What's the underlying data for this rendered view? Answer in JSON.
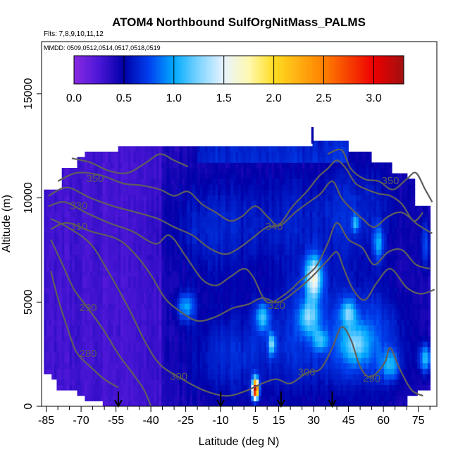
{
  "chart_data": {
    "type": "heatmap",
    "title": "ATOM4 Northbound SulfOrgNitMass_PALMS",
    "flights_label": "Flts: 7,8,9,10,11,12",
    "dates_label": "MMDD: 0509,0512,0514,0517,0518,0519",
    "xlabel": "Latitude (deg N)",
    "ylabel": "Altitude (m)",
    "xlim": [
      -87,
      83
    ],
    "ylim": [
      0,
      17500
    ],
    "x_ticks": [
      -85,
      -70,
      -55,
      -40,
      -25,
      -10,
      5,
      15,
      30,
      45,
      60,
      75
    ],
    "x_minor_ticks": [
      -80,
      -75,
      -65,
      -60,
      -50,
      -45,
      -35,
      -30,
      -20,
      -15,
      -5,
      0,
      10,
      20,
      25,
      35,
      40,
      50,
      55,
      65,
      70,
      80
    ],
    "y_ticks": [
      0,
      5000,
      10000,
      15000
    ],
    "colorbar": {
      "range": [
        0,
        3.3
      ],
      "ticks": [
        0.0,
        0.5,
        1.0,
        1.5,
        2.0,
        2.5,
        3.0
      ],
      "tick_labels": [
        "0.0",
        "0.5",
        "1.0",
        "1.5",
        "2.0",
        "2.5",
        "3.0"
      ],
      "stops": [
        {
          "v": 0.0,
          "color": "#8a2be2"
        },
        {
          "v": 0.25,
          "color": "#4b16d6"
        },
        {
          "v": 0.5,
          "color": "#0000a8"
        },
        {
          "v": 0.75,
          "color": "#0040ee"
        },
        {
          "v": 1.0,
          "color": "#00aaff"
        },
        {
          "v": 1.25,
          "color": "#7fd4ff"
        },
        {
          "v": 1.5,
          "color": "#e8f4ff"
        },
        {
          "v": 1.75,
          "color": "#fff8b0"
        },
        {
          "v": 2.0,
          "color": "#ffdd22"
        },
        {
          "v": 2.5,
          "color": "#ff8000"
        },
        {
          "v": 3.0,
          "color": "#ee0000"
        },
        {
          "v": 3.3,
          "color": "#a01010"
        }
      ]
    },
    "arrows_latitude": [
      -54,
      -10,
      16,
      38
    ],
    "contour_labels": [
      {
        "text": "350",
        "x": -64,
        "y": 10900
      },
      {
        "text": "330",
        "x": -71,
        "y": 9600
      },
      {
        "text": "310",
        "x": -71,
        "y": 8600
      },
      {
        "text": "340",
        "x": 13,
        "y": 8600
      },
      {
        "text": "350",
        "x": 63,
        "y": 10800
      },
      {
        "text": "320",
        "x": 14,
        "y": 4800
      },
      {
        "text": "290",
        "x": -67,
        "y": 4700
      },
      {
        "text": "280",
        "x": -67,
        "y": 2500
      },
      {
        "text": "300",
        "x": -28,
        "y": 1400
      },
      {
        "text": "300",
        "x": 27,
        "y": 1600
      },
      {
        "text": "290",
        "x": 55,
        "y": 1300
      }
    ],
    "contours": [
      {
        "level": 280,
        "points": [
          [
            -83,
            6500
          ],
          [
            -80,
            5200
          ],
          [
            -76,
            3800
          ],
          [
            -72,
            2600
          ],
          [
            -66,
            1900
          ],
          [
            -60,
            1300
          ],
          [
            -54,
            900
          ]
        ]
      },
      {
        "level": 290,
        "points": [
          [
            -83,
            8000
          ],
          [
            -78,
            6800
          ],
          [
            -73,
            5600
          ],
          [
            -67,
            4700
          ],
          [
            -60,
            3600
          ],
          [
            -54,
            2500
          ],
          [
            -48,
            1600
          ],
          [
            -43,
            800
          ],
          [
            -40,
            0
          ]
        ]
      },
      {
        "level": 300,
        "points": [
          [
            -83,
            9000
          ],
          [
            -76,
            8600
          ],
          [
            -66,
            7800
          ],
          [
            -58,
            6400
          ],
          [
            -50,
            4800
          ],
          [
            -42,
            3000
          ],
          [
            -36,
            2000
          ],
          [
            -28,
            1400
          ],
          [
            -18,
            800
          ],
          [
            -8,
            500
          ],
          [
            0,
            700
          ],
          [
            8,
            1100
          ],
          [
            14,
            1300
          ],
          [
            20,
            1100
          ],
          [
            27,
            1600
          ],
          [
            33,
            1800
          ],
          [
            38,
            2800
          ],
          [
            42,
            3800
          ],
          [
            46,
            3200
          ],
          [
            50,
            1900
          ],
          [
            54,
            1400
          ],
          [
            58,
            1700
          ],
          [
            61,
            2200
          ],
          [
            63,
            2800
          ],
          [
            67,
            1800
          ],
          [
            72,
            800
          ],
          [
            77,
            500
          ]
        ]
      },
      {
        "level": 310,
        "points": [
          [
            -83,
            8500
          ],
          [
            -76,
            8800
          ],
          [
            -66,
            8400
          ],
          [
            -54,
            8000
          ],
          [
            -46,
            7200
          ],
          [
            -40,
            6300
          ],
          [
            -34,
            5200
          ],
          [
            -28,
            4600
          ],
          [
            -20,
            4100
          ],
          [
            -12,
            4300
          ],
          [
            -5,
            4700
          ],
          [
            2,
            4900
          ],
          [
            8,
            5200
          ],
          [
            15,
            5000
          ],
          [
            23,
            5600
          ],
          [
            30,
            6300
          ],
          [
            36,
            7000
          ],
          [
            40,
            7400
          ],
          [
            43,
            6600
          ],
          [
            47,
            5600
          ],
          [
            52,
            5100
          ],
          [
            57,
            5900
          ],
          [
            63,
            6600
          ],
          [
            70,
            5700
          ],
          [
            76,
            5400
          ],
          [
            82,
            5600
          ]
        ]
      },
      {
        "level": 320,
        "points": [
          [
            -84,
            9600
          ],
          [
            -77,
            9800
          ],
          [
            -68,
            9300
          ],
          [
            -58,
            8800
          ],
          [
            -48,
            8400
          ],
          [
            -38,
            7800
          ],
          [
            -32,
            8200
          ],
          [
            -25,
            7200
          ],
          [
            -18,
            6100
          ],
          [
            -12,
            5800
          ],
          [
            -6,
            6200
          ],
          [
            0,
            6600
          ],
          [
            4,
            6200
          ],
          [
            10,
            5000
          ],
          [
            18,
            5400
          ],
          [
            24,
            6000
          ],
          [
            31,
            6700
          ],
          [
            36,
            7800
          ],
          [
            40,
            8800
          ],
          [
            45,
            8000
          ],
          [
            51,
            7600
          ],
          [
            56,
            6800
          ],
          [
            62,
            7400
          ],
          [
            68,
            7500
          ],
          [
            74,
            6800
          ],
          [
            80,
            6600
          ]
        ]
      },
      {
        "level": 330,
        "points": [
          [
            -84,
            10100
          ],
          [
            -76,
            10500
          ],
          [
            -66,
            10000
          ],
          [
            -56,
            9600
          ],
          [
            -46,
            9300
          ],
          [
            -37,
            9000
          ],
          [
            -30,
            8600
          ],
          [
            -22,
            8200
          ],
          [
            -15,
            7600
          ],
          [
            -8,
            7300
          ],
          [
            -2,
            7600
          ],
          [
            4,
            8100
          ],
          [
            10,
            8600
          ],
          [
            16,
            8700
          ],
          [
            22,
            9300
          ],
          [
            28,
            9800
          ],
          [
            33,
            10200
          ],
          [
            38,
            10800
          ],
          [
            42,
            10000
          ],
          [
            46,
            9500
          ],
          [
            51,
            9000
          ],
          [
            56,
            8600
          ],
          [
            62,
            9100
          ],
          [
            68,
            9300
          ],
          [
            75,
            8700
          ],
          [
            81,
            8300
          ]
        ]
      },
      {
        "level": 340,
        "points": [
          [
            -80,
            10800
          ],
          [
            -72,
            11200
          ],
          [
            -62,
            11100
          ],
          [
            -52,
            10700
          ],
          [
            -44,
            10600
          ],
          [
            -36,
            10400
          ],
          [
            -30,
            10100
          ],
          [
            -24,
            10300
          ],
          [
            -18,
            9700
          ],
          [
            -12,
            9300
          ],
          [
            -6,
            8900
          ],
          [
            -1,
            9100
          ],
          [
            5,
            9600
          ],
          [
            11,
            9000
          ],
          [
            15,
            8700
          ],
          [
            21,
            9600
          ],
          [
            27,
            10300
          ],
          [
            32,
            11000
          ],
          [
            36,
            11400
          ],
          [
            40,
            11800
          ],
          [
            44,
            11400
          ],
          [
            48,
            10700
          ],
          [
            53,
            10400
          ],
          [
            58,
            10200
          ],
          [
            63,
            10100
          ],
          [
            68,
            9700
          ],
          [
            73,
            8900
          ],
          [
            77,
            9300
          ]
        ]
      },
      {
        "level": 350,
        "points": [
          [
            -74,
            11900
          ],
          [
            -66,
            11700
          ],
          [
            -58,
            11300
          ],
          [
            -50,
            11200
          ],
          [
            -42,
            11700
          ],
          [
            -36,
            12100
          ],
          [
            -30,
            11800
          ],
          [
            -24,
            11500
          ]
        ]
      },
      {
        "level": 350,
        "points": [
          [
            36,
            12100
          ],
          [
            42,
            12300
          ],
          [
            46,
            11400
          ],
          [
            52,
            10900
          ],
          [
            58,
            10800
          ],
          [
            64,
            10400
          ],
          [
            70,
            10900
          ],
          [
            74,
            11200
          ],
          [
            78,
            10400
          ],
          [
            81,
            9800
          ]
        ]
      }
    ]
  }
}
